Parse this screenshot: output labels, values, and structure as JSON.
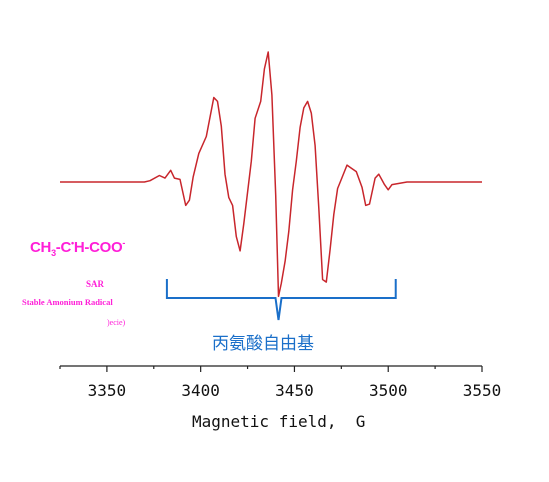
{
  "chart_data": {
    "type": "line",
    "title": "",
    "xlabel": "Magnetic field,  G",
    "ylabel": "",
    "xlim": [
      3325,
      3550
    ],
    "x_ticks": [
      3350,
      3400,
      3450,
      3500,
      3550
    ],
    "grid": false,
    "series": [
      {
        "color": "#c8262c",
        "points": [
          [
            3325,
            0
          ],
          [
            3345,
            0
          ],
          [
            3370,
            0
          ],
          [
            3373,
            0.01
          ],
          [
            3378,
            0.05
          ],
          [
            3381,
            0.03
          ],
          [
            3384,
            0.09
          ],
          [
            3386,
            0.03
          ],
          [
            3389,
            0.02
          ],
          [
            3392,
            -0.18
          ],
          [
            3394,
            -0.14
          ],
          [
            3396,
            0.04
          ],
          [
            3399,
            0.22
          ],
          [
            3403,
            0.35
          ],
          [
            3407,
            0.65
          ],
          [
            3409,
            0.62
          ],
          [
            3411,
            0.43
          ],
          [
            3413,
            0.06
          ],
          [
            3415,
            -0.12
          ],
          [
            3417,
            -0.18
          ],
          [
            3419,
            -0.42
          ],
          [
            3421,
            -0.53
          ],
          [
            3423,
            -0.32
          ],
          [
            3427,
            0.16
          ],
          [
            3429,
            0.49
          ],
          [
            3432,
            0.62
          ],
          [
            3434,
            0.87
          ],
          [
            3436,
            1.0
          ],
          [
            3438,
            0.67
          ],
          [
            3440,
            -0.1
          ],
          [
            3441.5,
            -0.88
          ],
          [
            3443,
            -0.78
          ],
          [
            3445,
            -0.61
          ],
          [
            3447,
            -0.38
          ],
          [
            3449,
            -0.06
          ],
          [
            3451,
            0.16
          ],
          [
            3453,
            0.42
          ],
          [
            3455,
            0.57
          ],
          [
            3457,
            0.62
          ],
          [
            3459,
            0.53
          ],
          [
            3461,
            0.28
          ],
          [
            3463,
            -0.2
          ],
          [
            3465,
            -0.75
          ],
          [
            3467,
            -0.77
          ],
          [
            3469,
            -0.52
          ],
          [
            3471,
            -0.25
          ],
          [
            3473,
            -0.05
          ],
          [
            3475,
            0.02
          ],
          [
            3478,
            0.13
          ],
          [
            3480,
            0.11
          ],
          [
            3483,
            0.08
          ],
          [
            3486,
            -0.04
          ],
          [
            3488,
            -0.18
          ],
          [
            3490,
            -0.17
          ],
          [
            3493,
            0.03
          ],
          [
            3495,
            0.06
          ],
          [
            3498,
            -0.02
          ],
          [
            3500,
            -0.06
          ],
          [
            3502,
            -0.02
          ],
          [
            3510,
            0
          ],
          [
            3550,
            0
          ]
        ]
      }
    ],
    "annotations": {
      "formula_main": "CH",
      "formula_sub": "3",
      "formula_mid": "-C",
      "formula_sup": "•",
      "formula_end": "H-COO",
      "formula_charge": "-",
      "sar_abbr": "SAR",
      "sar_name": "Stable Amonium Radical",
      "sar_species": "​)ecie)",
      "region_label": "丙氨酸自由基",
      "region_range": [
        3382,
        3504
      ]
    },
    "colors": {
      "trace": "#c8262c",
      "annotation": "#ff1fd8",
      "bracket": "#1a6fc9",
      "axis": "#222222"
    }
  }
}
